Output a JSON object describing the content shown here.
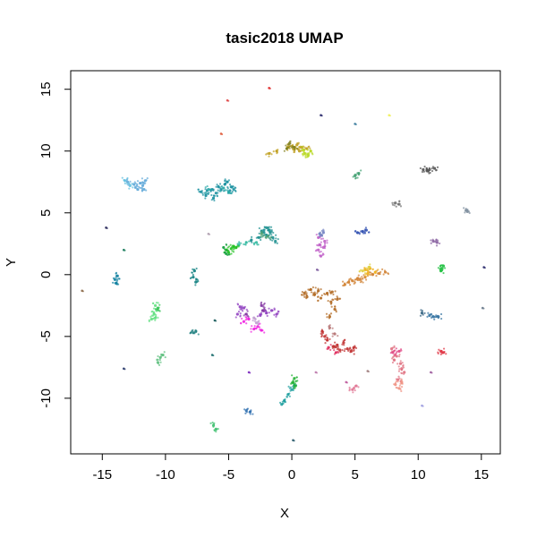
{
  "chart_data": {
    "type": "scatter",
    "title": "tasic2018 UMAP",
    "xlabel": "X",
    "ylabel": "Y",
    "xlim": [
      -17.5,
      16.5
    ],
    "ylim": [
      -14.5,
      16.5
    ],
    "xticks": [
      "-15",
      "-10",
      "-5",
      "0",
      "5",
      "10",
      "15"
    ],
    "yticks": [
      "-10",
      "-5",
      "0",
      "5",
      "10",
      "15"
    ],
    "grid": false,
    "legend": "none",
    "clusters": [
      {
        "color": "#c0a020",
        "pts": [
          [
            0,
            10.4
          ],
          [
            0.4,
            10.5
          ],
          [
            0.8,
            10.3
          ],
          [
            1.2,
            10.2
          ],
          [
            0.2,
            10.1
          ],
          [
            -0.3,
            10.3
          ],
          [
            0.6,
            10.0
          ],
          [
            -1.2,
            10.0
          ],
          [
            -1.8,
            9.8
          ]
        ]
      },
      {
        "color": "#b8d820",
        "pts": [
          [
            1.0,
            9.8
          ],
          [
            1.3,
            9.7
          ],
          [
            1.5,
            10.0
          ],
          [
            0.9,
            10.1
          ]
        ]
      },
      {
        "color": "#808020",
        "pts": [
          [
            -0.2,
            10.6
          ],
          [
            0.2,
            10.3
          ],
          [
            -0.4,
            10.2
          ]
        ]
      },
      {
        "color": "#1890a0",
        "pts": [
          [
            -7.2,
            6.7
          ],
          [
            -6.7,
            6.8
          ],
          [
            -6.3,
            6.9
          ],
          [
            -5.8,
            7.1
          ],
          [
            -5.3,
            7.3
          ],
          [
            -6.8,
            6.4
          ],
          [
            -6.0,
            6.6
          ],
          [
            -5.6,
            6.9
          ],
          [
            -4.9,
            6.8
          ],
          [
            -4.6,
            6.9
          ],
          [
            -5.1,
            7.5
          ],
          [
            -6.2,
            6.2
          ],
          [
            -4.8,
            7.1
          ]
        ]
      },
      {
        "color": "#2aa8a8",
        "pts": [
          [
            -5.4,
            7.0
          ],
          [
            -5.0,
            6.7
          ],
          [
            -6.6,
            6.9
          ]
        ]
      },
      {
        "color": "#60a8d8",
        "pts": [
          [
            -12.5,
            7.3
          ],
          [
            -12.0,
            7.4
          ],
          [
            -13.0,
            7.5
          ],
          [
            -11.8,
            7.2
          ],
          [
            -12.2,
            6.9
          ],
          [
            -11.6,
            7.6
          ],
          [
            -11.7,
            6.9
          ]
        ]
      },
      {
        "color": "#60c0e0",
        "pts": [
          [
            -13.2,
            7.6
          ],
          [
            -12.8,
            7.2
          ]
        ]
      },
      {
        "color": "#1e9090",
        "pts": [
          [
            -3.2,
            2.8
          ],
          [
            -2.6,
            3.0
          ],
          [
            -2.0,
            3.2
          ],
          [
            -1.5,
            3.0
          ],
          [
            -2.4,
            3.5
          ],
          [
            -2.0,
            3.8
          ],
          [
            -1.7,
            3.4
          ],
          [
            -1.3,
            2.7
          ],
          [
            -1.8,
            3.6
          ],
          [
            -2.2,
            3.4
          ]
        ]
      },
      {
        "color": "#30b8a0",
        "pts": [
          [
            -3.6,
            2.6
          ],
          [
            -4.2,
            2.4
          ],
          [
            -2.8,
            2.6
          ]
        ]
      },
      {
        "color": "#20c020",
        "pts": [
          [
            -5.2,
            2.0
          ],
          [
            -4.8,
            2.1
          ],
          [
            -4.4,
            2.2
          ],
          [
            -5.0,
            1.8
          ],
          [
            -4.6,
            2.3
          ]
        ]
      },
      {
        "color": "#18a040",
        "pts": [
          [
            -5.4,
            2.2
          ],
          [
            -5.2,
            1.7
          ]
        ]
      },
      {
        "color": "#50a070",
        "pts": [
          [
            -2.4,
            3.3
          ],
          [
            -1.9,
            3.1
          ]
        ]
      },
      {
        "color": "#c060c8",
        "pts": [
          [
            2.2,
            2.4
          ],
          [
            2.1,
            2.0
          ],
          [
            2.3,
            1.5
          ],
          [
            2.6,
            2.7
          ],
          [
            2.5,
            2.2
          ],
          [
            2.1,
            3.0
          ]
        ]
      },
      {
        "color": "#7080c0",
        "pts": [
          [
            2.2,
            3.3
          ],
          [
            2.5,
            3.4
          ]
        ]
      },
      {
        "color": "#b06820",
        "pts": [
          [
            1.2,
            -1.8
          ],
          [
            1.8,
            -1.6
          ],
          [
            1.5,
            -1.2
          ],
          [
            2.3,
            -1.9
          ],
          [
            2.8,
            -1.5
          ],
          [
            3.1,
            -2.2
          ],
          [
            3.4,
            -2.8
          ],
          [
            3.0,
            -3.4
          ],
          [
            1.0,
            -1.5
          ],
          [
            2.1,
            -1.3
          ],
          [
            3.6,
            -2.0
          ],
          [
            3.2,
            -1.4
          ]
        ]
      },
      {
        "color": "#d08030",
        "pts": [
          [
            4.2,
            -0.8
          ],
          [
            4.8,
            -0.5
          ],
          [
            5.2,
            -0.3
          ],
          [
            5.8,
            -0.2
          ],
          [
            6.4,
            0.0
          ],
          [
            6.9,
            0.1
          ],
          [
            7.4,
            0.2
          ],
          [
            5.4,
            -0.4
          ],
          [
            4.5,
            -0.6
          ]
        ]
      },
      {
        "color": "#f0b020",
        "pts": [
          [
            5.8,
            0.4
          ],
          [
            6.2,
            0.5
          ],
          [
            6.6,
            0.2
          ],
          [
            6.0,
            0.1
          ]
        ]
      },
      {
        "color": "#e0d040",
        "pts": [
          [
            6.1,
            0.6
          ],
          [
            5.6,
            0.3
          ]
        ]
      },
      {
        "color": "#c03030",
        "pts": [
          [
            2.4,
            -4.6
          ],
          [
            2.8,
            -5.3
          ],
          [
            3.3,
            -5.8
          ],
          [
            3.8,
            -6.1
          ],
          [
            4.4,
            -6.0
          ],
          [
            4.9,
            -5.9
          ],
          [
            3.6,
            -5.7
          ],
          [
            2.6,
            -5.0
          ],
          [
            4.1,
            -5.5
          ],
          [
            4.7,
            -6.2
          ]
        ]
      },
      {
        "color": "#e03060",
        "pts": [
          [
            3.5,
            -6.3
          ],
          [
            2.9,
            -5.9
          ]
        ]
      },
      {
        "color": "#b87878",
        "pts": [
          [
            3.0,
            -4.3
          ],
          [
            3.4,
            -4.8
          ]
        ]
      },
      {
        "color": "#e07080",
        "pts": [
          [
            7.9,
            -6.0
          ],
          [
            8.3,
            -6.6
          ],
          [
            8.6,
            -7.2
          ],
          [
            8.9,
            -7.9
          ],
          [
            8.4,
            -8.5
          ],
          [
            8.1,
            -6.9
          ],
          [
            8.7,
            -7.6
          ]
        ]
      },
      {
        "color": "#f09080",
        "pts": [
          [
            8.2,
            -8.9
          ],
          [
            8.5,
            -9.2
          ],
          [
            8.7,
            -8.7
          ]
        ]
      },
      {
        "color": "#e04080",
        "pts": [
          [
            8.0,
            -6.3
          ],
          [
            8.5,
            -6.2
          ]
        ]
      },
      {
        "color": "#f020e0",
        "pts": [
          [
            -3.8,
            -3.8
          ],
          [
            -3.0,
            -4.4
          ],
          [
            -2.4,
            -4.5
          ],
          [
            -3.4,
            -3.6
          ],
          [
            -2.7,
            -4.2
          ]
        ]
      },
      {
        "color": "#9040c0",
        "pts": [
          [
            -4.1,
            -2.6
          ],
          [
            -4.3,
            -3.2
          ],
          [
            -3.8,
            -2.7
          ],
          [
            -2.5,
            -3.3
          ],
          [
            -2.0,
            -3.1
          ],
          [
            -1.6,
            -2.9
          ],
          [
            -1.2,
            -3.2
          ]
        ]
      },
      {
        "color": "#8030a0",
        "pts": [
          [
            -2.4,
            -2.5
          ],
          [
            -2.3,
            -2.9
          ],
          [
            -3.6,
            -3.2
          ]
        ]
      },
      {
        "color": "#c0a0d0",
        "pts": [
          [
            -3.0,
            -3.5
          ],
          [
            -2.8,
            -3.9
          ]
        ]
      },
      {
        "color": "#505050",
        "pts": [
          [
            10.4,
            8.5
          ],
          [
            10.9,
            8.5
          ],
          [
            11.3,
            8.6
          ],
          [
            10.7,
            8.4
          ]
        ]
      },
      {
        "color": "#20a0a0",
        "pts": [
          [
            -0.6,
            -10.2
          ],
          [
            -0.3,
            -9.7
          ],
          [
            0.0,
            -9.3
          ],
          [
            0.2,
            -9.0
          ],
          [
            -0.8,
            -10.5
          ]
        ]
      },
      {
        "color": "#20b030",
        "pts": [
          [
            0.1,
            -8.7
          ],
          [
            0.3,
            -9.0
          ],
          [
            0.2,
            -8.4
          ]
        ]
      },
      {
        "color": "#60e080",
        "pts": [
          [
            -10.9,
            -3.2
          ],
          [
            -11.1,
            -3.6
          ],
          [
            -10.7,
            -2.9
          ],
          [
            -10.8,
            -3.5
          ],
          [
            -10.8,
            -2.5
          ]
        ]
      },
      {
        "color": "#30c050",
        "pts": [
          [
            -10.6,
            -2.7
          ]
        ]
      },
      {
        "color": "#1080a0",
        "pts": [
          [
            -14.0,
            -0.4
          ],
          [
            -13.9,
            -0.7
          ],
          [
            -13.8,
            -0.1
          ]
        ]
      },
      {
        "color": "#108080",
        "pts": [
          [
            -7.8,
            -0.2
          ],
          [
            -7.7,
            0.3
          ],
          [
            -7.6,
            -0.6
          ]
        ]
      },
      {
        "color": "#20c040",
        "pts": [
          [
            11.9,
            0.5
          ],
          [
            11.8,
            0.3
          ],
          [
            12.0,
            0.7
          ]
        ]
      },
      {
        "color": "#3070a0",
        "pts": [
          [
            11.2,
            -3.4
          ],
          [
            11.6,
            -3.4
          ],
          [
            10.9,
            -3.3
          ]
        ]
      },
      {
        "color": "#306080",
        "pts": [
          [
            10.3,
            -3.1
          ]
        ]
      },
      {
        "color": "#60c080",
        "pts": [
          [
            -10.4,
            -6.7
          ],
          [
            -10.6,
            -7.1
          ],
          [
            -10.2,
            -6.5
          ]
        ]
      },
      {
        "color": "#40c070",
        "pts": [
          [
            -6.2,
            -12.2
          ],
          [
            -6.0,
            -12.5
          ]
        ]
      },
      {
        "color": "#208080",
        "pts": [
          [
            -7.8,
            -4.7
          ],
          [
            -7.6,
            -4.6
          ]
        ]
      },
      {
        "color": "#3070b0",
        "pts": [
          [
            -3.6,
            -11.0
          ],
          [
            -3.3,
            -11.1
          ]
        ]
      },
      {
        "color": "#40a070",
        "pts": [
          [
            5.0,
            8.0
          ],
          [
            5.3,
            8.2
          ]
        ]
      },
      {
        "color": "#3050b0",
        "pts": [
          [
            5.2,
            3.4
          ],
          [
            5.6,
            3.5
          ],
          [
            5.9,
            3.6
          ]
        ]
      },
      {
        "color": "#707070",
        "pts": [
          [
            8.2,
            5.8
          ],
          [
            8.5,
            5.7
          ]
        ]
      },
      {
        "color": "#8090a0",
        "pts": [
          [
            13.8,
            5.2
          ],
          [
            13.9,
            5.1
          ]
        ]
      },
      {
        "color": "#8860a0",
        "pts": [
          [
            11.2,
            2.7
          ],
          [
            11.5,
            2.6
          ]
        ]
      },
      {
        "color": "#e07090",
        "pts": [
          [
            4.8,
            -9.3
          ],
          [
            5.1,
            -9.0
          ]
        ]
      },
      {
        "color": "#e03040",
        "pts": [
          [
            11.8,
            -6.2
          ],
          [
            12.0,
            -6.3
          ]
        ]
      }
    ],
    "singletons": [
      {
        "color": "#e05050",
        "pt": [
          -5.1,
          14.1
        ]
      },
      {
        "color": "#e03030",
        "pt": [
          -1.8,
          15.1
        ]
      },
      {
        "color": "#303070",
        "pt": [
          2.3,
          12.9
        ]
      },
      {
        "color": "#4080a0",
        "pt": [
          5.0,
          12.2
        ]
      },
      {
        "color": "#f0f060",
        "pt": [
          7.7,
          12.9
        ]
      },
      {
        "color": "#e06040",
        "pt": [
          -5.6,
          11.4
        ]
      },
      {
        "color": "#303060",
        "pt": [
          -14.7,
          3.8
        ]
      },
      {
        "color": "#208060",
        "pt": [
          -13.3,
          2.0
        ]
      },
      {
        "color": "#b0a0b0",
        "pt": [
          -6.6,
          3.3
        ]
      },
      {
        "color": "#8060a0",
        "pt": [
          2.0,
          0.4
        ]
      },
      {
        "color": "#303070",
        "pt": [
          15.2,
          0.6
        ]
      },
      {
        "color": "#708090",
        "pt": [
          15.1,
          -2.7
        ]
      },
      {
        "color": "#907050",
        "pt": [
          -16.6,
          -1.3
        ]
      },
      {
        "color": "#206060",
        "pt": [
          -6.1,
          -3.7
        ]
      },
      {
        "color": "#304070",
        "pt": [
          -13.3,
          -7.6
        ]
      },
      {
        "color": "#207070",
        "pt": [
          -6.3,
          -6.5
        ]
      },
      {
        "color": "#8030c0",
        "pt": [
          -3.4,
          -7.9
        ]
      },
      {
        "color": "#c080b0",
        "pt": [
          1.9,
          -7.9
        ]
      },
      {
        "color": "#c060a0",
        "pt": [
          4.3,
          -8.7
        ]
      },
      {
        "color": "#a08080",
        "pt": [
          6.0,
          -7.8
        ]
      },
      {
        "color": "#a060a0",
        "pt": [
          11.0,
          -7.9
        ]
      },
      {
        "color": "#a0a0e0",
        "pt": [
          10.3,
          -10.6
        ]
      },
      {
        "color": "#306070",
        "pt": [
          0.1,
          -13.4
        ]
      }
    ]
  }
}
